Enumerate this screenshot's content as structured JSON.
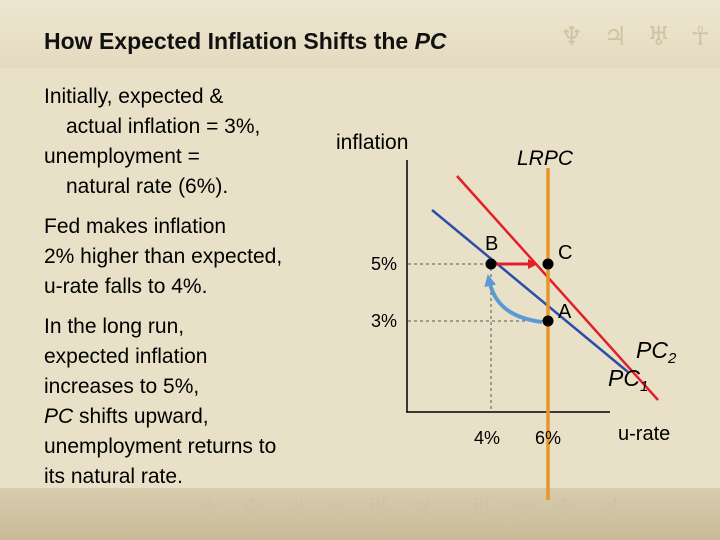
{
  "title": {
    "main": "How Expected Inflation Shifts the ",
    "emph": "PC"
  },
  "paragraphs": {
    "p1": [
      "Initially, expected &",
      "actual inflation = 3%,",
      "unemployment =",
      "natural rate (6%)."
    ],
    "p2": [
      "Fed makes inflation",
      "2% higher than expected,",
      "u-rate falls to 4%."
    ],
    "p3": {
      "line1": "In the long run,",
      "line2": "expected inflation",
      "line3": "increases to 5%,",
      "line4_emph": "PC",
      "line4_rest": " shifts upward,",
      "line5": "unemployment returns to",
      "line6": "its natural rate."
    }
  },
  "graph": {
    "y_axis_label": "inflation",
    "x_axis_label": "u-rate",
    "lrpc_label": "LRPC",
    "pc2_label": {
      "base": "PC",
      "sub": "2"
    },
    "pc1_label": {
      "base": "PC",
      "sub": "1"
    },
    "y_ticks": [
      "5%",
      "3%"
    ],
    "x_ticks": [
      "4%",
      "6%"
    ],
    "points": {
      "a": "A",
      "b": "B",
      "c": "C"
    },
    "colors": {
      "lrpc": "#e8962a",
      "pc1": "#e0202a",
      "pc2": "#2a4fa8",
      "arrow_red": "#e0202a",
      "arrow_blue": "#5b9bd5"
    }
  }
}
